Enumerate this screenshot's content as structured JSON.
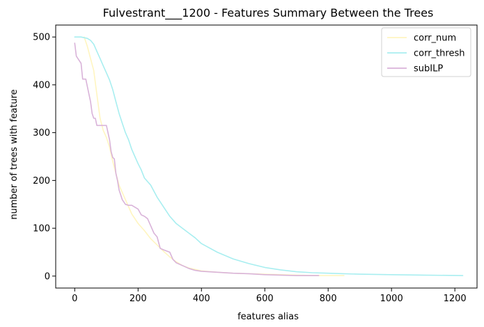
{
  "chart_data": {
    "type": "line",
    "title": "Fulvestrant___1200 - Features Summary Between the Trees",
    "xlabel": "features alias",
    "ylabel": "number of trees with feature",
    "xlim": [
      -60,
      1270
    ],
    "ylim": [
      -25,
      525
    ],
    "xticks": [
      0,
      200,
      400,
      600,
      800,
      1000,
      1200
    ],
    "yticks": [
      0,
      100,
      200,
      300,
      400,
      500
    ],
    "grid": false,
    "legend_position": "top-right",
    "series": [
      {
        "name": "corr_num",
        "color": "#fff5c0",
        "x": [
          30,
          40,
          50,
          60,
          70,
          80,
          90,
          100,
          110,
          120,
          130,
          140,
          160,
          180,
          200,
          220,
          240,
          260,
          280,
          300,
          320,
          340,
          360,
          400,
          450,
          500,
          550,
          600,
          650,
          700,
          750,
          800,
          850
        ],
        "y": [
          500,
          480,
          455,
          430,
          380,
          330,
          305,
          290,
          270,
          240,
          215,
          190,
          160,
          130,
          110,
          95,
          78,
          65,
          52,
          40,
          30,
          22,
          17,
          11,
          8,
          6,
          5,
          4,
          3,
          2,
          1,
          1,
          1
        ]
      },
      {
        "name": "corr_thresh",
        "color": "#a8eef0",
        "x": [
          0,
          20,
          40,
          50,
          60,
          70,
          80,
          90,
          100,
          110,
          120,
          130,
          140,
          150,
          160,
          170,
          180,
          190,
          200,
          210,
          220,
          240,
          260,
          280,
          300,
          320,
          340,
          360,
          380,
          400,
          450,
          500,
          550,
          600,
          650,
          700,
          750,
          800,
          850,
          900,
          1000,
          1100,
          1225
        ],
        "y": [
          500,
          500,
          497,
          493,
          485,
          470,
          455,
          440,
          425,
          410,
          390,
          365,
          340,
          320,
          300,
          285,
          265,
          250,
          235,
          222,
          205,
          190,
          165,
          145,
          125,
          110,
          100,
          90,
          80,
          68,
          50,
          36,
          26,
          18,
          13,
          9,
          7,
          6,
          5,
          4,
          3,
          2,
          1
        ]
      },
      {
        "name": "subILP",
        "color": "#d9b3d9",
        "x": [
          0,
          5,
          10,
          20,
          25,
          35,
          45,
          50,
          55,
          60,
          65,
          70,
          80,
          90,
          100,
          110,
          115,
          120,
          125,
          130,
          135,
          140,
          145,
          150,
          155,
          160,
          170,
          180,
          200,
          210,
          220,
          230,
          240,
          250,
          260,
          270,
          280,
          300,
          310,
          320,
          340,
          360,
          380,
          400,
          450,
          500,
          550,
          600,
          650,
          700,
          770
        ],
        "y": [
          487,
          460,
          455,
          445,
          412,
          412,
          380,
          365,
          340,
          330,
          330,
          315,
          315,
          315,
          315,
          285,
          260,
          248,
          245,
          215,
          200,
          180,
          170,
          160,
          155,
          150,
          148,
          148,
          140,
          128,
          125,
          120,
          105,
          90,
          82,
          58,
          55,
          50,
          35,
          28,
          22,
          16,
          12,
          10,
          8,
          6,
          5,
          3,
          2,
          1,
          1
        ]
      }
    ]
  }
}
